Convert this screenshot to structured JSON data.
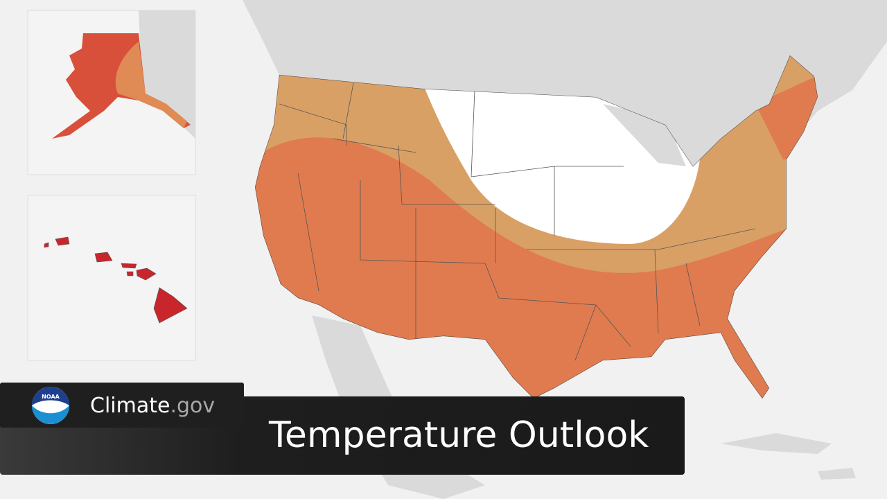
{
  "logo": {
    "text": "NOAA"
  },
  "brand": {
    "name": "Climate",
    "suffix": ".gov"
  },
  "title": "Temperature Outlook"
}
